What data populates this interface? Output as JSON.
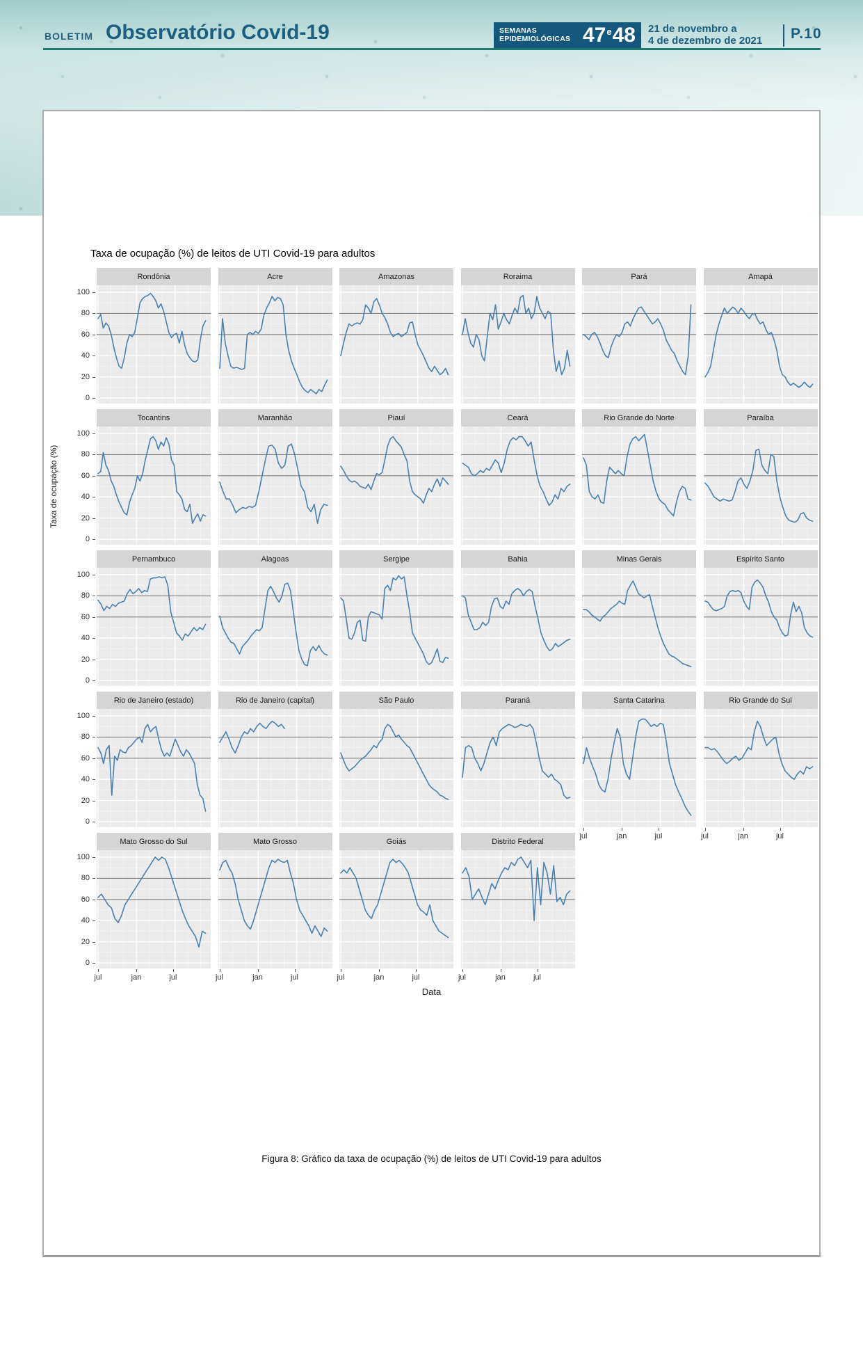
{
  "header": {
    "kicker": "BOLETIM",
    "title": "Observatório Covid-19",
    "weeks_label_line1": "SEMANAS",
    "weeks_label_line2": "EPIDEMIOLÓGICAS",
    "weeks_num1": "47",
    "weeks_conj": "e",
    "weeks_num2": "48",
    "date_line1": "21 de novembro a",
    "date_line2": "4 de dezembro de 2021",
    "page_label": "P.10",
    "colors": {
      "navy": "#1b5d7f",
      "box_blue": "#15587d",
      "teal_rule": "#1f7a6e"
    }
  },
  "chart": {
    "title": "Taxa de ocupação (%) de leitos de UTI Covid-19 para adultos",
    "y_axis_title": "Taxa de ocupação (%)",
    "x_axis_title": "Data",
    "y_ticks": [
      100,
      80,
      60,
      40,
      20,
      0
    ],
    "x_ticks": [
      "jul",
      "jan",
      "jul"
    ],
    "reference_lines": [
      60,
      80
    ],
    "line_color": "#4880b2",
    "panel_bg": "#ebebeb",
    "strip_bg": "#d5d5d5",
    "ref_line_color": "#7e7e7e"
  },
  "caption": "Figura 8: Gráfico da taxa de ocupação (%) de leitos de UTI Covid-19 para adultos",
  "chart_data": {
    "type": "line",
    "title": "Taxa de ocupação (%) de leitos de UTI Covid-19 para adultos",
    "xlabel": "Data",
    "ylabel": "Taxa de ocupação (%)",
    "ylim": [
      0,
      100
    ],
    "x_range": [
      "jul 2020",
      "dez 2021"
    ],
    "x_tick_labels": [
      "jul",
      "jan",
      "jul"
    ],
    "grid": true,
    "reference_lines_y": [
      60,
      80
    ],
    "legend": "none",
    "facets": [
      {
        "name": "Rondônia",
        "values": [
          75,
          79,
          66,
          71,
          68,
          60,
          48,
          38,
          30,
          28,
          38,
          52,
          60,
          58,
          62,
          76,
          90,
          94,
          96,
          97,
          99,
          96,
          92,
          85,
          89,
          82,
          72,
          62,
          57,
          60,
          61,
          52,
          63,
          50,
          42,
          38,
          35,
          34,
          36,
          55,
          68,
          73
        ]
      },
      {
        "name": "Acre",
        "values": [
          28,
          75,
          52,
          40,
          30,
          28,
          29,
          28,
          27,
          28,
          60,
          62,
          60,
          63,
          61,
          65,
          78,
          85,
          90,
          96,
          92,
          95,
          94,
          88,
          60,
          45,
          35,
          28,
          22,
          15,
          10,
          7,
          5,
          8,
          6,
          4,
          8,
          6,
          12,
          17
        ]
      },
      {
        "name": "Amazonas",
        "values": [
          40,
          52,
          62,
          70,
          68,
          70,
          71,
          70,
          74,
          88,
          85,
          80,
          91,
          94,
          88,
          80,
          76,
          70,
          62,
          58,
          60,
          61,
          58,
          60,
          62,
          71,
          72,
          60,
          50,
          45,
          40,
          34,
          28,
          25,
          30,
          26,
          22,
          24,
          28,
          22
        ]
      },
      {
        "name": "Roraima",
        "values": [
          60,
          75,
          62,
          52,
          48,
          60,
          55,
          40,
          35,
          58,
          80,
          74,
          88,
          65,
          72,
          80,
          74,
          70,
          78,
          85,
          80,
          95,
          97,
          80,
          85,
          75,
          80,
          96,
          85,
          80,
          75,
          82,
          80,
          45,
          25,
          35,
          22,
          28,
          45,
          30
        ]
      },
      {
        "name": "Pará",
        "values": [
          60,
          58,
          55,
          60,
          62,
          58,
          52,
          45,
          40,
          38,
          48,
          55,
          60,
          58,
          62,
          70,
          72,
          68,
          75,
          80,
          85,
          86,
          82,
          78,
          74,
          70,
          72,
          75,
          70,
          64,
          55,
          50,
          45,
          42,
          35,
          30,
          25,
          22,
          40,
          88
        ]
      },
      {
        "name": "Amapá",
        "values": [
          20,
          24,
          30,
          45,
          60,
          70,
          78,
          85,
          80,
          83,
          86,
          84,
          80,
          85,
          82,
          78,
          75,
          79,
          80,
          74,
          70,
          72,
          65,
          60,
          62,
          55,
          45,
          30,
          22,
          20,
          15,
          12,
          14,
          12,
          10,
          12,
          15,
          12,
          10,
          13
        ]
      },
      {
        "name": "Tocantins",
        "values": [
          62,
          64,
          82,
          70,
          65,
          55,
          50,
          42,
          35,
          30,
          25,
          23,
          35,
          42,
          48,
          60,
          55,
          62,
          75,
          85,
          95,
          97,
          93,
          85,
          92,
          88,
          96,
          90,
          75,
          70,
          45,
          42,
          38,
          28,
          26,
          33,
          15,
          20,
          24,
          17,
          23,
          22
        ]
      },
      {
        "name": "Maranhão",
        "values": [
          54,
          45,
          38,
          38,
          32,
          25,
          28,
          30,
          29,
          31,
          30,
          32,
          45,
          60,
          75,
          88,
          89,
          85,
          72,
          67,
          70,
          88,
          90,
          80,
          65,
          50,
          45,
          30,
          26,
          33,
          15,
          28,
          33,
          32
        ]
      },
      {
        "name": "Piauí",
        "values": [
          69,
          65,
          60,
          56,
          54,
          55,
          53,
          50,
          49,
          48,
          52,
          47,
          55,
          62,
          61,
          63,
          75,
          88,
          95,
          97,
          93,
          90,
          87,
          80,
          74,
          55,
          45,
          42,
          40,
          38,
          34,
          42,
          48,
          45,
          52,
          57,
          50,
          58,
          55,
          52
        ]
      },
      {
        "name": "Ceará",
        "values": [
          72,
          70,
          68,
          62,
          60,
          62,
          65,
          63,
          67,
          65,
          70,
          75,
          72,
          63,
          72,
          85,
          93,
          96,
          94,
          97,
          97,
          93,
          88,
          92,
          75,
          60,
          50,
          45,
          38,
          32,
          35,
          42,
          38,
          48,
          45,
          50,
          52
        ]
      },
      {
        "name": "Rio Grande do Norte",
        "values": [
          77,
          70,
          45,
          40,
          38,
          42,
          35,
          34,
          55,
          68,
          65,
          62,
          65,
          62,
          60,
          78,
          90,
          95,
          97,
          93,
          96,
          99,
          85,
          70,
          55,
          45,
          38,
          35,
          33,
          28,
          25,
          22,
          35,
          45,
          50,
          48,
          38,
          37
        ]
      },
      {
        "name": "Paraíba",
        "values": [
          53,
          50,
          45,
          40,
          38,
          36,
          38,
          37,
          36,
          37,
          45,
          55,
          58,
          52,
          48,
          55,
          65,
          84,
          85,
          70,
          65,
          62,
          80,
          78,
          55,
          40,
          30,
          22,
          18,
          17,
          16,
          18,
          24,
          25,
          20,
          18,
          17
        ]
      },
      {
        "name": "Pernambuco",
        "values": [
          76,
          72,
          66,
          70,
          68,
          72,
          70,
          73,
          74,
          75,
          82,
          86,
          82,
          84,
          87,
          83,
          85,
          84,
          96,
          97,
          97,
          98,
          97,
          98,
          90,
          65,
          55,
          45,
          42,
          38,
          44,
          42,
          46,
          50,
          47,
          50,
          48,
          53
        ]
      },
      {
        "name": "Alagoas",
        "values": [
          61,
          50,
          45,
          40,
          36,
          35,
          30,
          25,
          32,
          35,
          38,
          42,
          45,
          48,
          47,
          50,
          68,
          85,
          89,
          84,
          78,
          74,
          80,
          91,
          92,
          85,
          65,
          45,
          28,
          20,
          15,
          14,
          28,
          32,
          28,
          33,
          28,
          25,
          24
        ]
      },
      {
        "name": "Sergipe",
        "values": [
          78,
          75,
          58,
          40,
          39,
          45,
          55,
          57,
          38,
          37,
          60,
          65,
          64,
          63,
          62,
          58,
          87,
          90,
          85,
          97,
          95,
          99,
          96,
          98,
          80,
          65,
          45,
          40,
          35,
          30,
          25,
          18,
          15,
          17,
          23,
          30,
          18,
          17,
          22,
          21
        ]
      },
      {
        "name": "Bahia",
        "values": [
          80,
          78,
          62,
          55,
          48,
          48,
          50,
          55,
          52,
          55,
          70,
          77,
          78,
          70,
          68,
          75,
          72,
          82,
          85,
          87,
          85,
          80,
          84,
          86,
          84,
          70,
          58,
          45,
          38,
          32,
          28,
          30,
          35,
          32,
          34,
          36,
          38,
          39
        ]
      },
      {
        "name": "Minas Gerais",
        "values": [
          67,
          67,
          65,
          62,
          60,
          58,
          56,
          60,
          62,
          65,
          68,
          70,
          72,
          75,
          73,
          72,
          85,
          90,
          94,
          88,
          82,
          80,
          78,
          80,
          81,
          70,
          60,
          50,
          42,
          35,
          30,
          25,
          23,
          22,
          20,
          18,
          16,
          15,
          14,
          13
        ]
      },
      {
        "name": "Espírito Santo",
        "values": [
          75,
          74,
          70,
          67,
          66,
          67,
          68,
          70,
          80,
          84,
          85,
          84,
          85,
          83,
          75,
          70,
          67,
          88,
          93,
          95,
          92,
          88,
          80,
          74,
          65,
          60,
          57,
          50,
          45,
          42,
          43,
          62,
          74,
          65,
          70,
          64,
          50,
          45,
          42,
          41
        ]
      },
      {
        "name": "Rio de Janeiro (estado)",
        "values": [
          70,
          65,
          55,
          68,
          72,
          25,
          62,
          58,
          68,
          66,
          65,
          70,
          72,
          75,
          78,
          80,
          75,
          88,
          92,
          85,
          88,
          90,
          78,
          68,
          62,
          65,
          62,
          70,
          78,
          72,
          66,
          62,
          68,
          65,
          60,
          55,
          35,
          25,
          22,
          10
        ]
      },
      {
        "name": "Rio de Janeiro (capital)",
        "x_end_frac": 0.58,
        "values": [
          75,
          80,
          85,
          78,
          70,
          65,
          72,
          80,
          85,
          83,
          88,
          85,
          90,
          93,
          90,
          88,
          92,
          95,
          93,
          90,
          92,
          88
        ]
      },
      {
        "name": "São Paulo",
        "values": [
          65,
          58,
          52,
          48,
          50,
          52,
          55,
          58,
          60,
          62,
          65,
          68,
          72,
          70,
          75,
          78,
          88,
          92,
          90,
          85,
          80,
          82,
          78,
          75,
          72,
          70,
          65,
          60,
          55,
          50,
          45,
          40,
          35,
          32,
          30,
          28,
          25,
          24,
          22,
          21
        ]
      },
      {
        "name": "Paraná",
        "values": [
          42,
          70,
          72,
          70,
          60,
          55,
          48,
          55,
          65,
          75,
          80,
          72,
          85,
          88,
          90,
          92,
          91,
          89,
          90,
          92,
          91,
          90,
          92,
          88,
          75,
          60,
          48,
          45,
          42,
          45,
          40,
          38,
          35,
          25,
          22,
          23
        ]
      },
      {
        "name": "Santa Catarina",
        "values": [
          55,
          70,
          60,
          52,
          45,
          35,
          30,
          28,
          40,
          60,
          75,
          88,
          80,
          55,
          45,
          40,
          60,
          80,
          95,
          97,
          97,
          94,
          90,
          92,
          90,
          93,
          92,
          75,
          55,
          45,
          35,
          28,
          22,
          15,
          10,
          6
        ]
      },
      {
        "name": "Rio Grande do Sul",
        "values": [
          70,
          70,
          68,
          69,
          66,
          62,
          58,
          55,
          57,
          60,
          62,
          58,
          60,
          65,
          70,
          68,
          85,
          95,
          90,
          80,
          72,
          75,
          78,
          80,
          65,
          55,
          48,
          45,
          42,
          40,
          45,
          48,
          45,
          52,
          50,
          52
        ]
      },
      {
        "name": "Mato Grosso do Sul",
        "values": [
          62,
          65,
          60,
          55,
          52,
          42,
          38,
          45,
          55,
          60,
          65,
          70,
          75,
          80,
          85,
          90,
          95,
          100,
          97,
          100,
          98,
          90,
          80,
          70,
          60,
          50,
          42,
          35,
          30,
          25,
          15,
          30,
          28
        ]
      },
      {
        "name": "Mato Grosso",
        "values": [
          88,
          95,
          97,
          90,
          85,
          75,
          60,
          50,
          40,
          35,
          32,
          40,
          50,
          60,
          70,
          80,
          90,
          97,
          95,
          98,
          96,
          95,
          97,
          85,
          75,
          60,
          50,
          45,
          40,
          35,
          28,
          35,
          30,
          25,
          33,
          30
        ]
      },
      {
        "name": "Goiás",
        "values": [
          85,
          88,
          85,
          90,
          85,
          80,
          70,
          60,
          50,
          45,
          42,
          50,
          55,
          65,
          75,
          85,
          95,
          98,
          95,
          97,
          94,
          90,
          85,
          75,
          65,
          55,
          50,
          48,
          45,
          55,
          40,
          35,
          30,
          28,
          26,
          24
        ]
      },
      {
        "name": "Distrito Federal",
        "values": [
          85,
          90,
          82,
          60,
          65,
          70,
          62,
          55,
          65,
          75,
          70,
          78,
          85,
          90,
          88,
          95,
          92,
          98,
          100,
          95,
          90,
          97,
          40,
          90,
          55,
          95,
          85,
          65,
          92,
          58,
          62,
          55,
          65,
          68
        ]
      }
    ]
  }
}
